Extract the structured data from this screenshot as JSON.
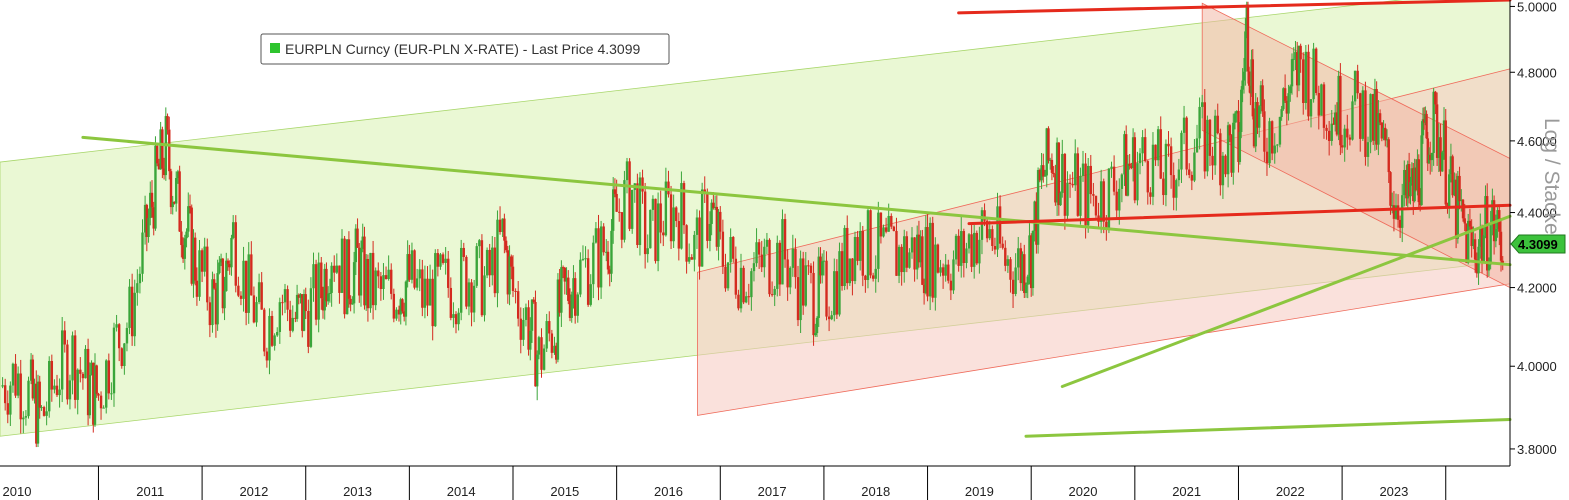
{
  "chart_data": {
    "type": "line",
    "title": "",
    "legend": {
      "text": "EURPLN Curncy (EUR-PLN X-RATE) - Last Price 4.3099",
      "color": "#2ec42e",
      "placement": "top-left"
    },
    "scale_label": "Log / Stacked",
    "last_price": 4.3099,
    "last_price_label": "4.3099",
    "x_axis": {
      "range": [
        2010.05,
        2024.62
      ],
      "year_labels": [
        "2010",
        "2011",
        "2012",
        "2013",
        "2014",
        "2015",
        "2016",
        "2017",
        "2018",
        "2019",
        "2020",
        "2021",
        "2022",
        "2023"
      ]
    },
    "y_axis": {
      "scale": "log",
      "range": [
        3.76,
        5.02
      ],
      "tick_labels": [
        "3.8000",
        "4.0000",
        "4.2000",
        "4.4000",
        "4.6000",
        "4.8000",
        "5.0000"
      ],
      "tick_values": [
        3.8,
        4.0,
        4.2,
        4.4,
        4.6,
        4.8,
        5.0
      ],
      "grid": false
    },
    "series": [
      {
        "name": "EURPLN Curncy (EUR-PLN X-RATE)",
        "style": "candlestick",
        "up_color": "#3aa53a",
        "down_color": "#d42a1f",
        "x": [
          2010.05,
          2010.2,
          2010.35,
          2010.45,
          2010.6,
          2010.75,
          2010.9,
          2011.0,
          2011.15,
          2011.3,
          2011.45,
          2011.55,
          2011.65,
          2011.75,
          2011.85,
          2011.95,
          2012.1,
          2012.2,
          2012.3,
          2012.45,
          2012.6,
          2012.75,
          2012.9,
          2013.0,
          2013.15,
          2013.25,
          2013.4,
          2013.5,
          2013.6,
          2013.75,
          2013.9,
          2014.0,
          2014.15,
          2014.3,
          2014.45,
          2014.6,
          2014.75,
          2014.9,
          2015.0,
          2015.15,
          2015.25,
          2015.4,
          2015.5,
          2015.6,
          2015.75,
          2015.9,
          2016.0,
          2016.15,
          2016.3,
          2016.45,
          2016.6,
          2016.75,
          2016.9,
          2017.0,
          2017.15,
          2017.3,
          2017.45,
          2017.6,
          2017.75,
          2017.9,
          2018.0,
          2018.15,
          2018.3,
          2018.45,
          2018.6,
          2018.75,
          2018.9,
          2019.0,
          2019.15,
          2019.3,
          2019.45,
          2019.6,
          2019.75,
          2019.9,
          2020.0,
          2020.1,
          2020.2,
          2020.3,
          2020.45,
          2020.6,
          2020.75,
          2020.9,
          2021.0,
          2021.15,
          2021.3,
          2021.45,
          2021.6,
          2021.75,
          2021.9,
          2022.0,
          2022.08,
          2022.15,
          2022.25,
          2022.4,
          2022.5,
          2022.6,
          2022.75,
          2022.9,
          2023.0,
          2023.15,
          2023.3,
          2023.4,
          2023.5,
          2023.62,
          2023.7,
          2023.78,
          2023.85,
          2023.95,
          2024.05,
          2024.15,
          2024.25,
          2024.35,
          2024.45,
          2024.55
        ],
        "close": [
          3.95,
          3.98,
          3.92,
          3.87,
          3.98,
          4.03,
          3.95,
          3.93,
          4.05,
          4.12,
          4.32,
          4.48,
          4.58,
          4.44,
          4.35,
          4.25,
          4.17,
          4.2,
          4.34,
          4.18,
          4.09,
          4.18,
          4.12,
          4.14,
          4.19,
          4.31,
          4.22,
          4.27,
          4.2,
          4.18,
          4.2,
          4.22,
          4.17,
          4.2,
          4.21,
          4.24,
          4.21,
          4.33,
          4.19,
          4.11,
          4.02,
          4.1,
          4.18,
          4.23,
          4.26,
          4.31,
          4.4,
          4.46,
          4.32,
          4.39,
          4.41,
          4.3,
          4.42,
          4.29,
          4.25,
          4.24,
          4.27,
          4.29,
          4.22,
          4.18,
          4.18,
          4.24,
          4.33,
          4.3,
          4.29,
          4.29,
          4.3,
          4.28,
          4.28,
          4.27,
          4.34,
          4.35,
          4.27,
          4.26,
          4.3,
          4.49,
          4.56,
          4.5,
          4.46,
          4.44,
          4.46,
          4.52,
          4.54,
          4.55,
          4.49,
          4.56,
          4.6,
          4.6,
          4.58,
          4.59,
          4.96,
          4.7,
          4.62,
          4.68,
          4.75,
          4.83,
          4.75,
          4.7,
          4.69,
          4.69,
          4.65,
          4.57,
          4.45,
          4.43,
          4.46,
          4.56,
          4.65,
          4.62,
          4.45,
          4.37,
          4.3,
          4.33,
          4.37,
          4.3099
        ]
      }
    ],
    "annotations": [
      {
        "type": "band",
        "name": "long-term-green-channel",
        "color": "#d9f2b0",
        "x": [
          2010.05,
          2024.62
        ],
        "upper": [
          4.54,
          5.06
        ],
        "lower": [
          3.83,
          4.27
        ]
      },
      {
        "type": "band",
        "name": "red-rising-channel",
        "color": "#f5c9c0",
        "x": [
          2016.78,
          2024.62
        ],
        "upper": [
          4.24,
          4.81
        ],
        "lower": [
          3.88,
          4.21
        ]
      },
      {
        "type": "band",
        "name": "red-falling-channel",
        "color": "#f2b8a6",
        "x": [
          2021.65,
          2024.62
        ],
        "upper": [
          5.01,
          4.55
        ],
        "lower": [
          4.63,
          4.2
        ]
      },
      {
        "type": "line",
        "name": "descending-green-trendline",
        "color": "#8cc63f",
        "x": [
          2010.85,
          2024.62
        ],
        "y": [
          4.61,
          4.26
        ]
      },
      {
        "type": "line",
        "name": "rising-green-trendline",
        "color": "#8cc63f",
        "x": [
          2020.3,
          2024.62
        ],
        "y": [
          3.95,
          4.39
        ]
      },
      {
        "type": "line",
        "name": "bottom-green-line",
        "color": "#8cc63f",
        "x": [
          2019.95,
          2024.62
        ],
        "y": [
          3.83,
          3.87
        ]
      },
      {
        "type": "line",
        "name": "top-red-line",
        "color": "#e52a1c",
        "x": [
          2019.3,
          2024.62
        ],
        "y": [
          4.98,
          5.02
        ]
      },
      {
        "type": "line",
        "name": "mid-red-line",
        "color": "#e52a1c",
        "x": [
          2019.4,
          2024.62
        ],
        "y": [
          4.37,
          4.42
        ]
      }
    ]
  }
}
